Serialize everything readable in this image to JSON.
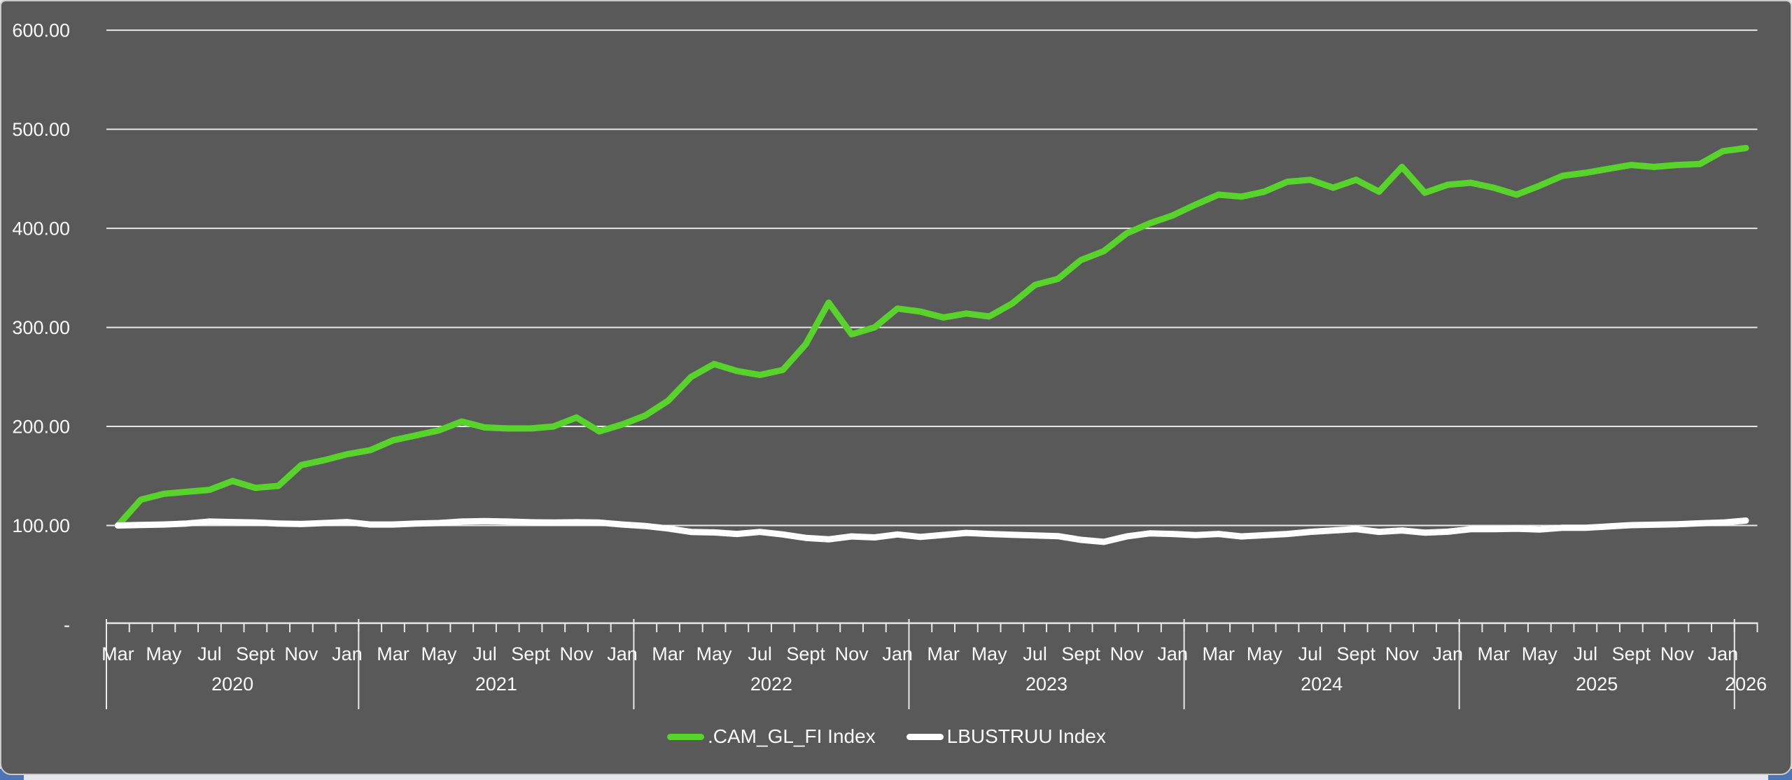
{
  "page": {
    "background_outside": "#e4e7ec",
    "corner_accent_color": "#4d74b5",
    "card_background": "#595959",
    "card_border": "#cbcbcb",
    "text_color": "#fafafa",
    "gridline_color": "#e8e8e8"
  },
  "chart_data": {
    "type": "line",
    "title": "",
    "xlabel": "",
    "ylabel": "",
    "grid": true,
    "legend_position": "bottom",
    "ylim": [
      0,
      600
    ],
    "y_axis": {
      "ticks": [
        {
          "label": "600.00",
          "value": 600
        },
        {
          "label": "500.00",
          "value": 500
        },
        {
          "label": "400.00",
          "value": 400
        },
        {
          "label": "300.00",
          "value": 300
        },
        {
          "label": "200.00",
          "value": 200
        },
        {
          "label": "100.00",
          "value": 100
        },
        {
          "label": "-",
          "value": 0
        }
      ]
    },
    "x_axis": {
      "month_label_cycle": [
        "Mar",
        "May",
        "Jul",
        "Sept",
        "Nov",
        "Jan"
      ],
      "years": [
        {
          "label": "2020",
          "n_start": 0,
          "n_count": 11
        },
        {
          "label": "2021",
          "n_start": 11,
          "n_count": 12
        },
        {
          "label": "2022",
          "n_start": 23,
          "n_count": 12
        },
        {
          "label": "2023",
          "n_start": 35,
          "n_count": 12
        },
        {
          "label": "2024",
          "n_start": 47,
          "n_count": 12
        },
        {
          "label": "2025",
          "n_start": 59,
          "n_count": 12
        },
        {
          "label": "2026",
          "n_start": 71,
          "n_count": 1
        }
      ]
    },
    "categories": [
      "Mar 2020",
      "Apr 2020",
      "May 2020",
      "Jun 2020",
      "Jul 2020",
      "Aug 2020",
      "Sep 2020",
      "Oct 2020",
      "Nov 2020",
      "Dec 2020",
      "Jan 2021",
      "Feb 2021",
      "Mar 2021",
      "Apr 2021",
      "May 2021",
      "Jun 2021",
      "Jul 2021",
      "Aug 2021",
      "Sep 2021",
      "Oct 2021",
      "Nov 2021",
      "Dec 2021",
      "Jan 2022",
      "Feb 2022",
      "Mar 2022",
      "Apr 2022",
      "May 2022",
      "Jun 2022",
      "Jul 2022",
      "Aug 2022",
      "Sep 2022",
      "Oct 2022",
      "Nov 2022",
      "Dec 2022",
      "Jan 2023",
      "Feb 2023",
      "Mar 2023",
      "Apr 2023",
      "May 2023",
      "Jun 2023",
      "Jul 2023",
      "Aug 2023",
      "Sep 2023",
      "Oct 2023",
      "Nov 2023",
      "Dec 2023",
      "Jan 2024",
      "Feb 2024",
      "Mar 2024",
      "Apr 2024",
      "May 2024",
      "Jun 2024",
      "Jul 2024",
      "Aug 2024",
      "Sep 2024",
      "Oct 2024",
      "Nov 2024",
      "Dec 2024",
      "Jan 2025",
      "Feb 2025",
      "Mar 2025",
      "Apr 2025",
      "May 2025",
      "Jun 2025",
      "Jul 2025",
      "Aug 2025",
      "Sep 2025",
      "Oct 2025",
      "Nov 2025",
      "Dec 2025",
      "Jan 2026",
      "Feb 2026"
    ],
    "series": [
      {
        "name": ".CAM_GL_FI Index",
        "color": "#57d32b",
        "values": [
          100,
          126,
          132,
          134,
          136,
          145,
          138,
          140,
          161,
          166,
          172,
          176,
          186,
          191,
          196,
          205,
          199,
          198,
          198,
          200,
          209,
          195,
          202,
          211,
          226,
          250,
          263,
          256,
          252,
          257,
          283,
          325,
          293,
          300,
          319,
          316,
          310,
          314,
          311,
          324,
          343,
          349,
          368,
          377,
          395,
          405,
          413,
          424,
          434,
          432,
          437,
          447,
          449,
          441,
          449,
          437,
          462,
          436,
          444,
          446,
          441,
          434,
          443,
          453,
          456,
          460,
          464,
          462,
          464,
          465,
          478,
          481
        ]
      },
      {
        "name": "LBUSTRUU Index",
        "color": "#ffffff",
        "values": [
          100,
          100.5,
          101,
          102,
          104,
          103.5,
          103,
          102,
          101.5,
          102.5,
          103.5,
          101,
          101,
          102,
          102.5,
          104,
          104.5,
          104,
          103.3,
          103,
          103.3,
          103,
          101,
          99.5,
          97,
          93.5,
          93,
          91.5,
          93.5,
          91,
          87.5,
          86,
          89,
          88,
          91,
          88.5,
          90.5,
          92.5,
          91.5,
          90.6,
          90,
          89.3,
          85.5,
          83.5,
          89,
          92,
          91.5,
          90.3,
          91.5,
          89,
          90.2,
          91.5,
          93.6,
          95,
          96.4,
          93.6,
          95,
          92.8,
          93.7,
          96.3,
          96.3,
          96.8,
          96,
          97.7,
          97.7,
          99,
          100.4,
          100.8,
          101.3,
          102.2,
          103,
          105
        ]
      }
    ]
  },
  "legend": {
    "items": [
      {
        "label": ".CAM_GL_FI Index",
        "color": "#57d32b"
      },
      {
        "label": "LBUSTRUU Index",
        "color": "#ffffff"
      }
    ]
  }
}
